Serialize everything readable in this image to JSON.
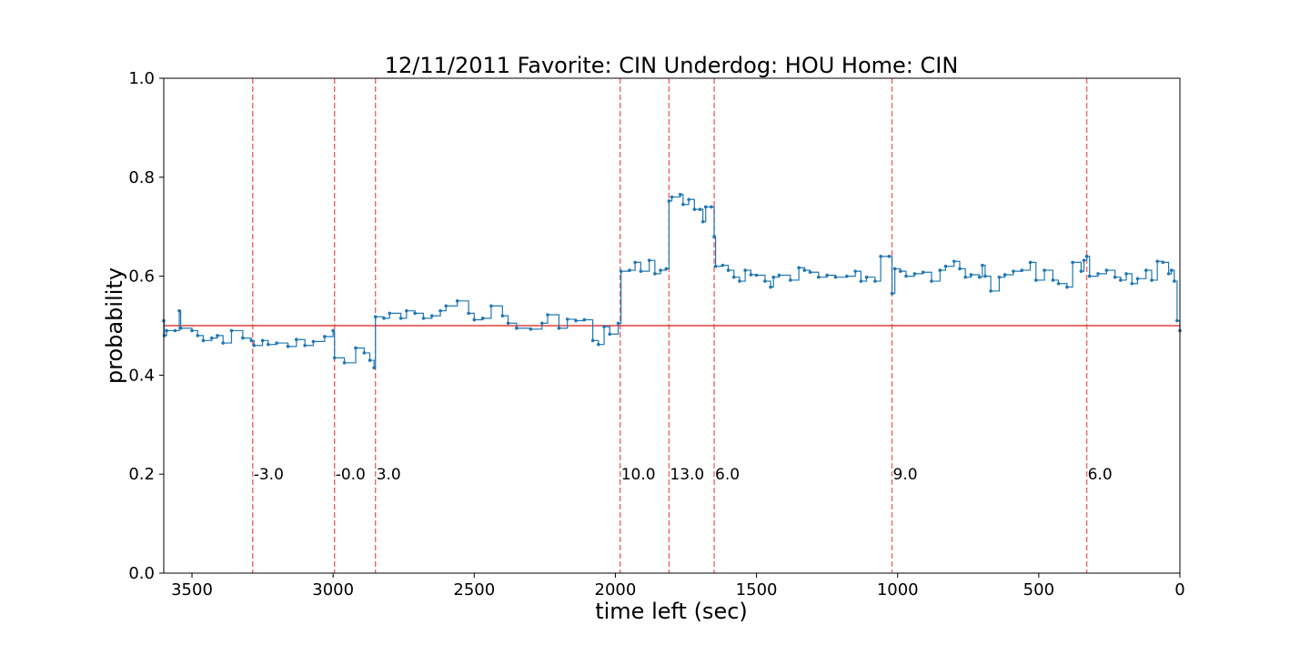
{
  "chart_data": {
    "type": "line",
    "title": "12/11/2011 Favorite: CIN Underdog: HOU Home: CIN",
    "xlabel": "time left (sec)",
    "ylabel": "probability",
    "xlim": [
      3600,
      0
    ],
    "ylim": [
      0.0,
      1.0
    ],
    "x_ticks": [
      3500,
      3000,
      2500,
      2000,
      1500,
      1000,
      500,
      0
    ],
    "x_tick_labels": [
      "3500",
      "3000",
      "2500",
      "2000",
      "1500",
      "1000",
      "500",
      "0"
    ],
    "y_ticks": [
      0.0,
      0.2,
      0.4,
      0.6,
      0.8,
      1.0
    ],
    "y_tick_labels": [
      "0.0",
      "0.2",
      "0.4",
      "0.6",
      "0.8",
      "1.0"
    ],
    "grid": false,
    "reference_line": {
      "y": 0.5,
      "color": "#e8413c"
    },
    "series": [
      {
        "color": "#1f77b4",
        "step": true,
        "points": [
          [
            3600,
            0.51
          ],
          [
            3598,
            0.48
          ],
          [
            3590,
            0.49
          ],
          [
            3560,
            0.49
          ],
          [
            3545,
            0.53
          ],
          [
            3540,
            0.495
          ],
          [
            3500,
            0.49
          ],
          [
            3480,
            0.48
          ],
          [
            3460,
            0.47
          ],
          [
            3430,
            0.475
          ],
          [
            3410,
            0.48
          ],
          [
            3390,
            0.465
          ],
          [
            3360,
            0.49
          ],
          [
            3320,
            0.475
          ],
          [
            3290,
            0.47
          ],
          [
            3280,
            0.46
          ],
          [
            3250,
            0.47
          ],
          [
            3230,
            0.462
          ],
          [
            3200,
            0.465
          ],
          [
            3160,
            0.458
          ],
          [
            3130,
            0.472
          ],
          [
            3100,
            0.46
          ],
          [
            3070,
            0.468
          ],
          [
            3030,
            0.478
          ],
          [
            3000,
            0.49
          ],
          [
            2995,
            0.435
          ],
          [
            2960,
            0.425
          ],
          [
            2920,
            0.455
          ],
          [
            2890,
            0.445
          ],
          [
            2870,
            0.43
          ],
          [
            2855,
            0.415
          ],
          [
            2850,
            0.518
          ],
          [
            2820,
            0.515
          ],
          [
            2800,
            0.525
          ],
          [
            2760,
            0.515
          ],
          [
            2740,
            0.53
          ],
          [
            2710,
            0.525
          ],
          [
            2680,
            0.515
          ],
          [
            2650,
            0.52
          ],
          [
            2620,
            0.53
          ],
          [
            2600,
            0.54
          ],
          [
            2560,
            0.55
          ],
          [
            2520,
            0.525
          ],
          [
            2500,
            0.512
          ],
          [
            2470,
            0.515
          ],
          [
            2440,
            0.54
          ],
          [
            2400,
            0.52
          ],
          [
            2380,
            0.505
          ],
          [
            2350,
            0.495
          ],
          [
            2300,
            0.493
          ],
          [
            2260,
            0.505
          ],
          [
            2240,
            0.522
          ],
          [
            2200,
            0.495
          ],
          [
            2170,
            0.513
          ],
          [
            2140,
            0.51
          ],
          [
            2110,
            0.512
          ],
          [
            2080,
            0.47
          ],
          [
            2060,
            0.462
          ],
          [
            2040,
            0.498
          ],
          [
            2020,
            0.483
          ],
          [
            1990,
            0.505
          ],
          [
            1980,
            0.61
          ],
          [
            1950,
            0.612
          ],
          [
            1930,
            0.628
          ],
          [
            1910,
            0.61
          ],
          [
            1880,
            0.632
          ],
          [
            1860,
            0.605
          ],
          [
            1840,
            0.612
          ],
          [
            1820,
            0.615
          ],
          [
            1810,
            0.752
          ],
          [
            1800,
            0.76
          ],
          [
            1770,
            0.765
          ],
          [
            1760,
            0.745
          ],
          [
            1740,
            0.755
          ],
          [
            1720,
            0.735
          ],
          [
            1700,
            0.735
          ],
          [
            1690,
            0.71
          ],
          [
            1680,
            0.74
          ],
          [
            1660,
            0.74
          ],
          [
            1650,
            0.68
          ],
          [
            1645,
            0.62
          ],
          [
            1620,
            0.622
          ],
          [
            1600,
            0.612
          ],
          [
            1580,
            0.598
          ],
          [
            1560,
            0.59
          ],
          [
            1540,
            0.612
          ],
          [
            1520,
            0.603
          ],
          [
            1500,
            0.602
          ],
          [
            1470,
            0.59
          ],
          [
            1450,
            0.578
          ],
          [
            1440,
            0.598
          ],
          [
            1420,
            0.602
          ],
          [
            1380,
            0.592
          ],
          [
            1350,
            0.617
          ],
          [
            1330,
            0.612
          ],
          [
            1310,
            0.608
          ],
          [
            1280,
            0.598
          ],
          [
            1250,
            0.602
          ],
          [
            1220,
            0.598
          ],
          [
            1180,
            0.6
          ],
          [
            1150,
            0.61
          ],
          [
            1130,
            0.59
          ],
          [
            1110,
            0.598
          ],
          [
            1080,
            0.59
          ],
          [
            1060,
            0.64
          ],
          [
            1030,
            0.64
          ],
          [
            1020,
            0.565
          ],
          [
            1010,
            0.615
          ],
          [
            990,
            0.61
          ],
          [
            970,
            0.6
          ],
          [
            940,
            0.605
          ],
          [
            910,
            0.608
          ],
          [
            880,
            0.59
          ],
          [
            850,
            0.612
          ],
          [
            830,
            0.62
          ],
          [
            800,
            0.63
          ],
          [
            780,
            0.615
          ],
          [
            760,
            0.598
          ],
          [
            740,
            0.603
          ],
          [
            710,
            0.598
          ],
          [
            700,
            0.622
          ],
          [
            690,
            0.6
          ],
          [
            670,
            0.57
          ],
          [
            640,
            0.598
          ],
          [
            620,
            0.603
          ],
          [
            590,
            0.61
          ],
          [
            560,
            0.612
          ],
          [
            530,
            0.628
          ],
          [
            510,
            0.592
          ],
          [
            480,
            0.612
          ],
          [
            450,
            0.592
          ],
          [
            430,
            0.585
          ],
          [
            400,
            0.578
          ],
          [
            380,
            0.628
          ],
          [
            350,
            0.61
          ],
          [
            340,
            0.632
          ],
          [
            330,
            0.64
          ],
          [
            320,
            0.6
          ],
          [
            290,
            0.605
          ],
          [
            260,
            0.612
          ],
          [
            230,
            0.598
          ],
          [
            210,
            0.592
          ],
          [
            190,
            0.605
          ],
          [
            170,
            0.585
          ],
          [
            150,
            0.595
          ],
          [
            120,
            0.612
          ],
          [
            100,
            0.592
          ],
          [
            80,
            0.63
          ],
          [
            60,
            0.628
          ],
          [
            40,
            0.605
          ],
          [
            30,
            0.612
          ],
          [
            20,
            0.59
          ],
          [
            10,
            0.51
          ],
          [
            0,
            0.49
          ]
        ]
      }
    ],
    "vertical_markers": [
      {
        "x": 3285,
        "label": "-3.0"
      },
      {
        "x": 2995,
        "label": "-0.0"
      },
      {
        "x": 2850,
        "label": "3.0"
      },
      {
        "x": 1983,
        "label": "10.0"
      },
      {
        "x": 1810,
        "label": "13.0"
      },
      {
        "x": 1650,
        "label": "6.0"
      },
      {
        "x": 1020,
        "label": "9.0"
      },
      {
        "x": 330,
        "label": "6.0"
      }
    ],
    "marker_label_y": 0.2,
    "marker_color": "#ee6666"
  }
}
